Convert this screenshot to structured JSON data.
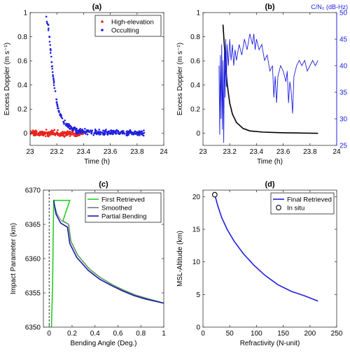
{
  "colors": {
    "red": "#e8231c",
    "blue": "#1f1fe0",
    "black": "#000000",
    "green": "#22d022",
    "gray": "#7a7a7a",
    "navy": "#1a1aa8",
    "axis": "#333333"
  },
  "chart_data": [
    {
      "id": "a",
      "type": "scatter",
      "title": "(a)",
      "xlabel": "Time (h)",
      "ylabel": "Excess Doppler (m s⁻¹)",
      "xlim": [
        23,
        24
      ],
      "ylim": [
        -0.1,
        1
      ],
      "xticks": [
        "23",
        "23.2",
        "23.4",
        "23.6",
        "23.8",
        "24"
      ],
      "yticks": [
        "0",
        "0.2",
        "0.4",
        "0.6",
        "0.8",
        "1"
      ],
      "legend": {
        "placement": "top-right",
        "entries": [
          "High-elevation",
          "Occulting"
        ]
      },
      "series": [
        {
          "name": "High-elevation",
          "color": "red",
          "x_range": [
            23.0,
            23.4
          ],
          "mean": 0.0,
          "spread": 0.03,
          "count": 240
        },
        {
          "name": "Occulting",
          "color": "blue",
          "curve": [
            [
              23.12,
              0.96
            ],
            [
              23.14,
              0.85
            ],
            [
              23.16,
              0.6
            ],
            [
              23.18,
              0.4
            ],
            [
              23.2,
              0.25
            ],
            [
              23.22,
              0.17
            ],
            [
              23.25,
              0.1
            ],
            [
              23.3,
              0.05
            ],
            [
              23.35,
              0.02
            ],
            [
              23.45,
              0.01
            ],
            [
              23.86,
              0.0
            ]
          ],
          "x_range": [
            23.12,
            23.86
          ],
          "spread": 0.025,
          "count": 330
        }
      ]
    },
    {
      "id": "b",
      "type": "line",
      "title": "(b)",
      "xlabel": "Time (h)",
      "ylabel": "Excess Doppler (m s⁻¹)",
      "ylabel_right": "C/N₀ (dB-Hz)",
      "xlim": [
        23,
        24
      ],
      "ylim": [
        -0.1,
        1
      ],
      "ylim_right": [
        25,
        50
      ],
      "xticks": [
        "23",
        "23.2",
        "23.4",
        "23.6",
        "23.8",
        "24"
      ],
      "yticks": [
        "0",
        "0.2",
        "0.4",
        "0.6",
        "0.8",
        "1"
      ],
      "yticks_right": [
        "25",
        "30",
        "35",
        "40",
        "45",
        "50"
      ],
      "series": [
        {
          "name": "Excess Doppler",
          "color": "black",
          "points": [
            [
              23.15,
              0.9
            ],
            [
              23.16,
              0.72
            ],
            [
              23.17,
              0.55
            ],
            [
              23.18,
              0.42
            ],
            [
              23.19,
              0.33
            ],
            [
              23.2,
              0.25
            ],
            [
              23.22,
              0.16
            ],
            [
              23.25,
              0.09
            ],
            [
              23.3,
              0.04
            ],
            [
              23.35,
              0.02
            ],
            [
              23.45,
              0.01
            ],
            [
              23.6,
              0.005
            ],
            [
              23.86,
              0.0
            ]
          ]
        },
        {
          "name": "C/N₀",
          "color": "blue",
          "axis": "right",
          "points": [
            [
              23.12,
              40
            ],
            [
              23.125,
              27
            ],
            [
              23.13,
              42
            ],
            [
              23.135,
              30
            ],
            [
              23.14,
              44
            ],
            [
              23.145,
              28
            ],
            [
              23.15,
              41
            ],
            [
              23.155,
              25.5
            ],
            [
              23.16,
              43
            ],
            [
              23.165,
              34
            ],
            [
              23.17,
              45
            ],
            [
              23.175,
              36
            ],
            [
              23.18,
              44
            ],
            [
              23.19,
              40
            ],
            [
              23.2,
              45
            ],
            [
              23.21,
              41
            ],
            [
              23.22,
              44
            ],
            [
              23.23,
              40
            ],
            [
              23.24,
              43
            ],
            [
              23.25,
              41
            ],
            [
              23.27,
              44
            ],
            [
              23.29,
              42
            ],
            [
              23.31,
              45
            ],
            [
              23.33,
              43
            ],
            [
              23.35,
              46
            ],
            [
              23.37,
              44
            ],
            [
              23.38,
              46
            ],
            [
              23.39,
              43
            ],
            [
              23.4,
              45
            ],
            [
              23.42,
              43
            ],
            [
              23.44,
              44
            ],
            [
              23.46,
              41
            ],
            [
              23.48,
              42
            ],
            [
              23.5,
              39
            ],
            [
              23.52,
              40
            ],
            [
              23.53,
              34
            ],
            [
              23.54,
              38
            ],
            [
              23.55,
              33
            ],
            [
              23.56,
              38
            ],
            [
              23.58,
              40
            ],
            [
              23.6,
              39
            ],
            [
              23.62,
              37
            ],
            [
              23.63,
              39
            ],
            [
              23.64,
              33
            ],
            [
              23.65,
              37
            ],
            [
              23.66,
              35
            ],
            [
              23.67,
              31
            ],
            [
              23.68,
              38
            ],
            [
              23.69,
              39
            ],
            [
              23.7,
              40
            ],
            [
              23.72,
              41
            ],
            [
              23.74,
              40
            ],
            [
              23.76,
              41
            ],
            [
              23.78,
              39
            ],
            [
              23.8,
              40
            ],
            [
              23.82,
              41
            ],
            [
              23.84,
              40
            ],
            [
              23.86,
              41
            ]
          ]
        }
      ]
    },
    {
      "id": "c",
      "type": "line",
      "title": "(c)",
      "xlabel": "Bending Angle (Deg.)",
      "ylabel": "Impact Parameter (km)",
      "xlim": [
        -0.05,
        1
      ],
      "ylim": [
        6350,
        6370
      ],
      "xticks": [
        "0",
        "0.2",
        "0.4",
        "0.6",
        "0.8",
        "1"
      ],
      "yticks": [
        "6350",
        "6355",
        "6360",
        "6365",
        "6370"
      ],
      "legend": {
        "placement": "top-right",
        "entries": [
          "First Retrieved",
          "Smoothed",
          "Partial Bending"
        ]
      },
      "series": [
        {
          "name": "First Retrieved",
          "color": "green",
          "points": [
            [
              0.02,
              6350
            ],
            [
              0.03,
              6356
            ],
            [
              0.04,
              6368.5
            ],
            [
              0.18,
              6368.5
            ],
            [
              0.12,
              6365.5
            ],
            [
              0.17,
              6365
            ],
            [
              0.19,
              6362.5
            ],
            [
              0.25,
              6360.5
            ],
            [
              0.35,
              6358.5
            ],
            [
              0.45,
              6357.2
            ],
            [
              0.55,
              6356.2
            ],
            [
              0.65,
              6355.4
            ],
            [
              0.75,
              6354.7
            ],
            [
              0.85,
              6354.2
            ],
            [
              1.0,
              6353.5
            ]
          ]
        },
        {
          "name": "Smoothed",
          "color": "gray",
          "points": [
            [
              0.04,
              6368.2
            ],
            [
              0.07,
              6366.5
            ],
            [
              0.11,
              6365.5
            ],
            [
              0.17,
              6365
            ],
            [
              0.19,
              6362.5
            ],
            [
              0.25,
              6360.5
            ],
            [
              0.35,
              6358.5
            ],
            [
              0.45,
              6357.2
            ],
            [
              0.55,
              6356.2
            ],
            [
              0.65,
              6355.4
            ],
            [
              0.75,
              6354.7
            ],
            [
              0.85,
              6354.2
            ],
            [
              1.0,
              6353.5
            ]
          ]
        },
        {
          "name": "Partial Bending",
          "color": "navy",
          "points": [
            [
              0.04,
              6368.5
            ],
            [
              0.06,
              6366.5
            ],
            [
              0.1,
              6365.2
            ],
            [
              0.16,
              6364.6
            ],
            [
              0.18,
              6362.2
            ],
            [
              0.24,
              6360.2
            ],
            [
              0.34,
              6358.3
            ],
            [
              0.44,
              6357
            ],
            [
              0.54,
              6356.1
            ],
            [
              0.64,
              6355.3
            ],
            [
              0.74,
              6354.6
            ],
            [
              0.84,
              6354.1
            ],
            [
              1.0,
              6353.5
            ]
          ]
        }
      ],
      "reference_line": {
        "x": 0,
        "style": "dashed"
      }
    },
    {
      "id": "d",
      "type": "line",
      "title": "(d)",
      "xlabel": "Refractivity (N-unit)",
      "ylabel": "MSL-Altitude (km)",
      "xlim": [
        0,
        250
      ],
      "ylim": [
        0,
        21
      ],
      "xticks": [
        "0",
        "50",
        "100",
        "150",
        "200",
        "250"
      ],
      "yticks": [
        "0",
        "5",
        "10",
        "15",
        "20"
      ],
      "legend": {
        "placement": "top-right",
        "entries": [
          "Final Retrieved",
          "In situ"
        ]
      },
      "series": [
        {
          "name": "Final Retrieved",
          "color": "blue",
          "points": [
            [
              22,
              20.3
            ],
            [
              28,
              18.5
            ],
            [
              35,
              16.8
            ],
            [
              45,
              15
            ],
            [
              58,
              13.2
            ],
            [
              75,
              11.3
            ],
            [
              95,
              9.5
            ],
            [
              115,
              8
            ],
            [
              140,
              6.5
            ],
            [
              165,
              5.5
            ],
            [
              190,
              4.8
            ],
            [
              215,
              4
            ]
          ]
        },
        {
          "name": "In situ",
          "marker": "circle",
          "points": [
            [
              22,
              20.3
            ]
          ]
        }
      ]
    }
  ]
}
